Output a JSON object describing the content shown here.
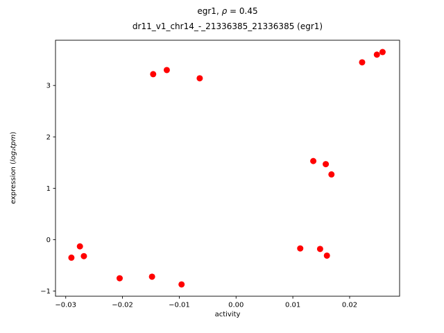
{
  "chart_data": {
    "type": "scatter",
    "title": "egr1, ρ = 0.45",
    "title_parts": {
      "prefix": "egr1, ",
      "rho": "ρ",
      "suffix": " = 0.45"
    },
    "subtitle": "dr11_v1_chr14_-_21336385_21336385 (egr1)",
    "xlabel": "activity",
    "ylabel": "expression (log₂tpm)",
    "ylabel_parts": {
      "prefix": "expression (",
      "math": "log₂tpm",
      "suffix": ")"
    },
    "marker_color": "#ff0000",
    "marker_radius": 4.5,
    "xlim": [
      -0.0318,
      0.0288
    ],
    "ylim": [
      -1.1,
      3.88
    ],
    "grid": false,
    "legend": "none",
    "xticks": [
      {
        "value": -0.03,
        "label": "−0.03"
      },
      {
        "value": -0.02,
        "label": "−0.02"
      },
      {
        "value": -0.01,
        "label": "−0.01"
      },
      {
        "value": 0.0,
        "label": "0.00"
      },
      {
        "value": 0.01,
        "label": "0.01"
      },
      {
        "value": 0.02,
        "label": "0.02"
      }
    ],
    "yticks": [
      {
        "value": -1,
        "label": "−1"
      },
      {
        "value": 0,
        "label": "0"
      },
      {
        "value": 1,
        "label": "1"
      },
      {
        "value": 2,
        "label": "2"
      },
      {
        "value": 3,
        "label": "3"
      }
    ],
    "points": [
      [
        -0.029,
        -0.35
      ],
      [
        -0.0275,
        -0.13
      ],
      [
        -0.0268,
        -0.32
      ],
      [
        -0.0205,
        -0.75
      ],
      [
        -0.0148,
        -0.72
      ],
      [
        -0.0146,
        3.22
      ],
      [
        -0.0122,
        3.3
      ],
      [
        -0.0096,
        -0.87
      ],
      [
        -0.0064,
        3.14
      ],
      [
        0.0113,
        -0.17
      ],
      [
        0.0136,
        1.53
      ],
      [
        0.0148,
        -0.18
      ],
      [
        0.0158,
        1.47
      ],
      [
        0.016,
        -0.31
      ],
      [
        0.0168,
        1.27
      ],
      [
        0.0222,
        3.45
      ],
      [
        0.0248,
        3.6
      ],
      [
        0.0258,
        3.65
      ]
    ]
  }
}
